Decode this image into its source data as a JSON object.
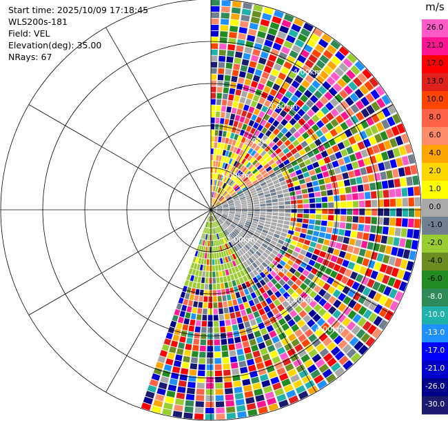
{
  "header": {
    "start_time": "Start time: 2025/10/09 17:18:45",
    "instrument": "WLS200s-181",
    "field": "Field: VEL",
    "elevation": "Elevation(deg): 35.00",
    "nrays": "NRays: 67"
  },
  "colorbar": {
    "unit": "m/s",
    "ticks": [
      "26.0",
      "21.0",
      "17.0",
      "13.0",
      "10.0",
      "8.0",
      "6.0",
      "4.0",
      "2.0",
      "1.0",
      "0.0",
      "-1.0",
      "-2.0",
      "-4.0",
      "-6.0",
      "-8.0",
      "-10.0",
      "-13.0",
      "-17.0",
      "-21.0",
      "-26.0",
      "-30.0"
    ],
    "colors": [
      "#ff5ac8",
      "#ff1493",
      "#ff0000",
      "#e0201c",
      "#ff4500",
      "#ff6347",
      "#ff8c69",
      "#ffa500",
      "#ffd700",
      "#ffff00",
      "#a9a9a9",
      "#708090",
      "#9acd32",
      "#6b8e23",
      "#228b22",
      "#2e8b57",
      "#20b2aa",
      "#1e90ff",
      "#0000ff",
      "#0000cd",
      "#00008b",
      "#191970"
    ]
  },
  "chart_data": {
    "type": "ppi",
    "field": "VEL",
    "units": "m/s",
    "elevation_deg": 35.0,
    "nrays": 67,
    "sector_az_deg": [
      0,
      200
    ],
    "range_rings_km": [
      1.0,
      2.0,
      3.0,
      4.0,
      5.0
    ],
    "ring_labels": [
      "1.00km",
      "2.00km",
      "3.00km",
      "4.00km"
    ],
    "value_range": [
      -30.0,
      26.0
    ]
  }
}
